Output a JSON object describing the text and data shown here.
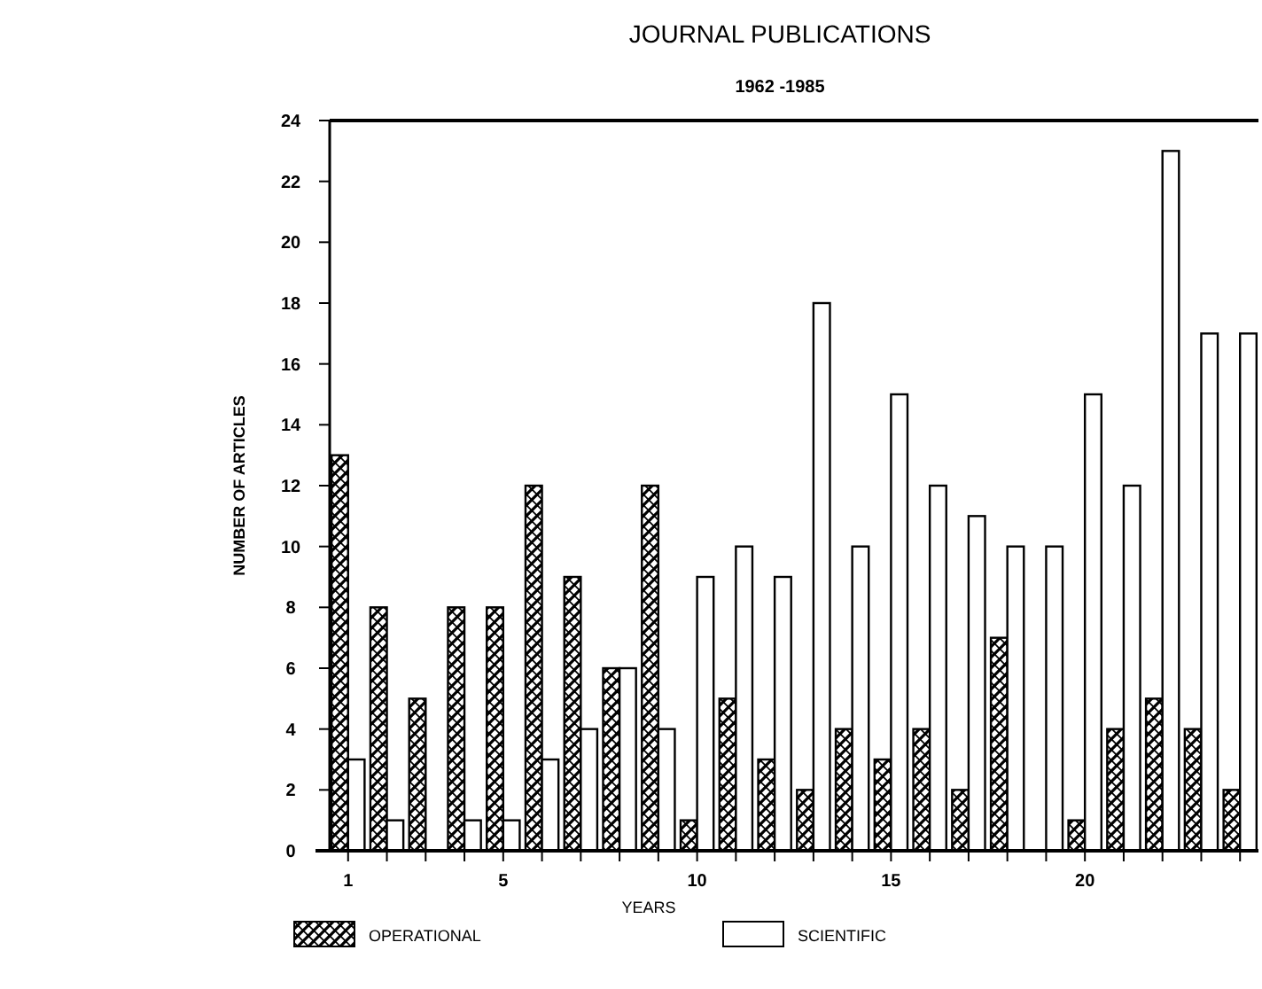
{
  "chart_data": {
    "type": "bar",
    "title": "JOURNAL PUBLICATIONS",
    "subtitle": "1962 -1985",
    "xlabel": "YEARS",
    "ylabel": "NUMBER OF ARTICLES",
    "categories": [
      "1",
      null,
      null,
      null,
      "5",
      null,
      null,
      null,
      null,
      "10",
      null,
      null,
      null,
      null,
      "15",
      null,
      null,
      null,
      null,
      "20",
      null,
      null,
      null,
      null
    ],
    "series": [
      {
        "name": "OPERATIONAL",
        "color": "#000000",
        "values": [
          13,
          8,
          5,
          8,
          8,
          12,
          9,
          6,
          12,
          1,
          5,
          3,
          2,
          4,
          3,
          4,
          2,
          7,
          0,
          1,
          4,
          5,
          4,
          2
        ]
      },
      {
        "name": "SCIENTIFIC",
        "color": "#ffffff",
        "values": [
          3,
          1,
          0,
          1,
          1,
          3,
          4,
          6,
          4,
          9,
          10,
          9,
          18,
          10,
          15,
          12,
          11,
          10,
          10,
          15,
          12,
          23,
          17,
          17
        ]
      }
    ],
    "ylim": [
      0,
      24
    ],
    "yticks": [
      0,
      2,
      4,
      6,
      8,
      10,
      12,
      14,
      16,
      18,
      20,
      22,
      24
    ],
    "grid": false,
    "legend": "bottom"
  }
}
